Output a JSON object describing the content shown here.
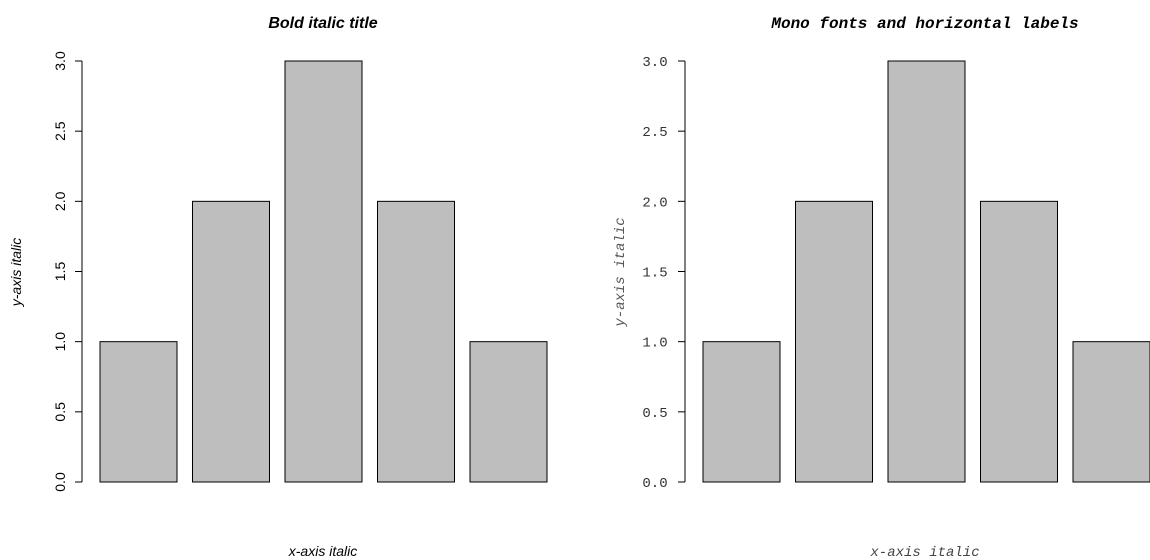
{
  "chart_data": [
    {
      "type": "bar",
      "title": "Bold italic title",
      "xlabel": "x-axis italic",
      "ylabel": "y-axis italic",
      "values": [
        1,
        2,
        3,
        2,
        1
      ],
      "ylim": [
        0,
        3
      ],
      "yticks": [
        0,
        0.5,
        1,
        1.5,
        2,
        2.5,
        3
      ],
      "ytick_labels": [
        "0.0",
        "0.5",
        "1.0",
        "1.5",
        "2.0",
        "2.5",
        "3.0"
      ],
      "tick_label_orientation": "vertical",
      "font_style": "sans-serif",
      "bar_color": "#bebebe",
      "grid": false
    },
    {
      "type": "bar",
      "title": "Mono fonts and horizontal labels",
      "xlabel": "x-axis italic",
      "ylabel": "y-axis italic",
      "values": [
        1,
        2,
        3,
        2,
        1
      ],
      "ylim": [
        0,
        3
      ],
      "yticks": [
        0,
        0.5,
        1,
        1.5,
        2,
        2.5,
        3
      ],
      "ytick_labels": [
        "0.0",
        "0.5",
        "1.0",
        "1.5",
        "2.0",
        "2.5",
        "3.0"
      ],
      "tick_label_orientation": "horizontal",
      "font_style": "monospace",
      "bar_color": "#bebebe",
      "grid": false
    }
  ]
}
